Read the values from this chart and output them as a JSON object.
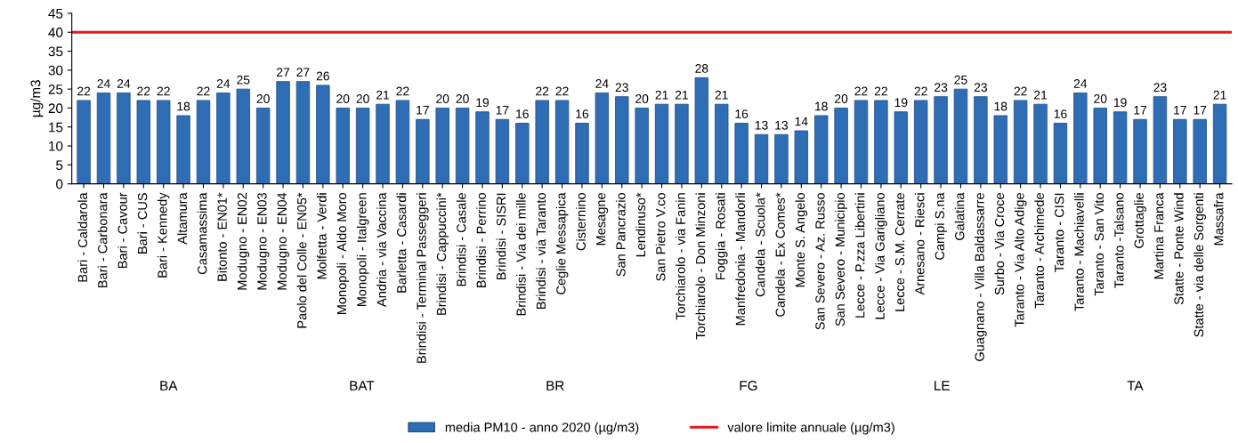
{
  "chart_data": {
    "type": "bar",
    "ylabel": "µg/m3",
    "categories": [
      "Bari - Caldarola",
      "Bari - Carbonara",
      "Bari - Cavour",
      "Bari - CUS",
      "Bari - Kennedy",
      "Altamura",
      "Casamassima",
      "Bitonto - EN01*",
      "Modugno - EN02",
      "Modugno - EN03",
      "Modugno - EN04",
      "Paolo del Colle - EN05*",
      "Molfetta - Verdi",
      "Monopoli - Aldo Moro",
      "Monopoli - Italgreen",
      "Andria - via Vaccina",
      "Barletta - Casardi",
      "Brindisi - Terminal Passeggeri",
      "Brindisi - Cappuccini*",
      "Brindisi - Casale",
      "Brindisi - Perrino",
      "Brindisi - SISRI",
      "Brindisi - Via dei mille",
      "Brindisi - via Taranto",
      "Ceglie Messapica",
      "Cisternino",
      "Mesagne",
      "San Pancrazio",
      "Lendinuso*",
      "San Pietro V.co",
      "Torchiarolo - via Fanin",
      "Torchiarolo - Don Minzoni",
      "Foggia - Rosati",
      "Manfredonia - Mandorli",
      "Candela - Scuola*",
      "Candela - Ex Comes*",
      "Monte S. Angelo",
      "San Severo - Az. Russo",
      "San Severo - Municipio",
      "Lecce - P.zza Libertini",
      "Lecce - Via Garigliano",
      "Lecce - S.M. Cerrate",
      "Arnesano - Riesci",
      "Campi S.na",
      "Galatina",
      "Guagnano - Villa Baldassarre",
      "Surbo - Via Croce",
      "Taranto - Via Alto Adige",
      "Taranto - Archimede",
      "Taranto - CISI",
      "Taranto - Machiavelli",
      "Taranto - San Vito",
      "Taranto -Talsano",
      "Grottaglie",
      "Martina Franca",
      "Statte - Ponte Wind",
      "Statte - via delle Sorgenti",
      "Massafra"
    ],
    "series": [
      {
        "name": "media PM10 - anno 2020 (µg/m3)",
        "color": "#2f6db5",
        "values": [
          22,
          24,
          24,
          22,
          22,
          18,
          22,
          24,
          25,
          20,
          27,
          27,
          26,
          20,
          20,
          21,
          22,
          17,
          20,
          20,
          19,
          17,
          16,
          22,
          22,
          16,
          24,
          23,
          20,
          21,
          21,
          28,
          21,
          16,
          13,
          13,
          14,
          18,
          20,
          22,
          22,
          19,
          22,
          23,
          25,
          23,
          18,
          22,
          21,
          16,
          24,
          20,
          19,
          17,
          23,
          17,
          17,
          21
        ]
      }
    ],
    "data_labels": true,
    "ylim": [
      0,
      45
    ],
    "yticks": [
      0,
      5,
      10,
      15,
      20,
      25,
      30,
      35,
      40,
      45
    ],
    "ref_lines": [
      {
        "axis": "y",
        "value": 40,
        "label": "valore limite annuale (µg/m3)",
        "color": "#e8141b"
      }
    ],
    "annotations": [
      "BA",
      "BAT",
      "BR",
      "FG",
      "LE",
      "TA"
    ],
    "grid": false,
    "legend": "bottom"
  }
}
